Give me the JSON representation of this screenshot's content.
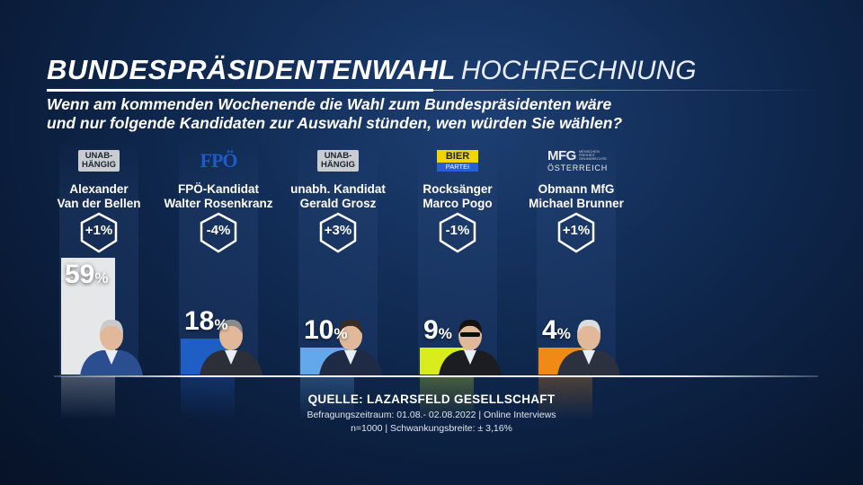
{
  "header": {
    "title_bold": "BUNDESPRÄSIDENTENWAHL",
    "title_light": "HOCHRECHNUNG",
    "question_line1": "Wenn am kommenden Wochenende die Wahl zum Bundespräsidenten wäre",
    "question_line2": "und nur folgende Kandidaten zur Auswahl stünden, wen würden Sie wählen?"
  },
  "chart_data": {
    "type": "bar",
    "categories": [
      "Alexander Van der Bellen",
      "FPÖ-Kandidat Walter Rosenkranz",
      "unabh. Kandidat Gerald Grosz",
      "Rocksänger Marco Pogo",
      "Obmann MfG Michael Brunner"
    ],
    "values": [
      59,
      18,
      10,
      9,
      4
    ],
    "unit": "%",
    "ylim": [
      0,
      59
    ],
    "colors": [
      "#e6e7e9",
      "#1f5ec4",
      "#62a8ea",
      "#d9ec1e",
      "#ee8a15"
    ],
    "candidates": [
      {
        "line1": "Alexander",
        "line2": "Van der Bellen",
        "value_label": "59",
        "change": "+1%",
        "logo": "unab",
        "logo_l1": "UNAB-",
        "logo_l2": "HÄNGIG"
      },
      {
        "line1": "FPÖ-Kandidat",
        "line2": "Walter Rosenkranz",
        "value_label": "18",
        "change": "-4%",
        "logo": "fpo",
        "logo_l1": "FPÖ"
      },
      {
        "line1": "unabh. Kandidat",
        "line2": "Gerald Grosz",
        "value_label": "10",
        "change": "+3%",
        "logo": "unab",
        "logo_l1": "UNAB-",
        "logo_l2": "HÄNGIG"
      },
      {
        "line1": "Rocksänger",
        "line2": "Marco Pogo",
        "value_label": "9",
        "change": "-1%",
        "logo": "bier",
        "logo_l1": "BIER",
        "logo_l2": "PARTEI"
      },
      {
        "line1": "Obmann MfG",
        "line2": "Michael Brunner",
        "value_label": "4",
        "change": "+1%",
        "logo": "mfg",
        "logo_l1": "MFG",
        "logo_l2": "ÖSTERREICH",
        "logo_l3": "MENSCHEN FREIHEIT GRUNDRECHTE"
      }
    ],
    "pct_symbol": "%"
  },
  "source": {
    "title": "QUELLE:  LAZARSFELD GESELLSCHAFT",
    "line1": "Befragungszeitraum: 01.08.- 02.08.2022 | Online Interviews",
    "line2": "n=1000 |  Schwankungsbreite: ± 3,16%"
  },
  "icons": [
    "portrait-icon",
    "change-badge-icon"
  ]
}
